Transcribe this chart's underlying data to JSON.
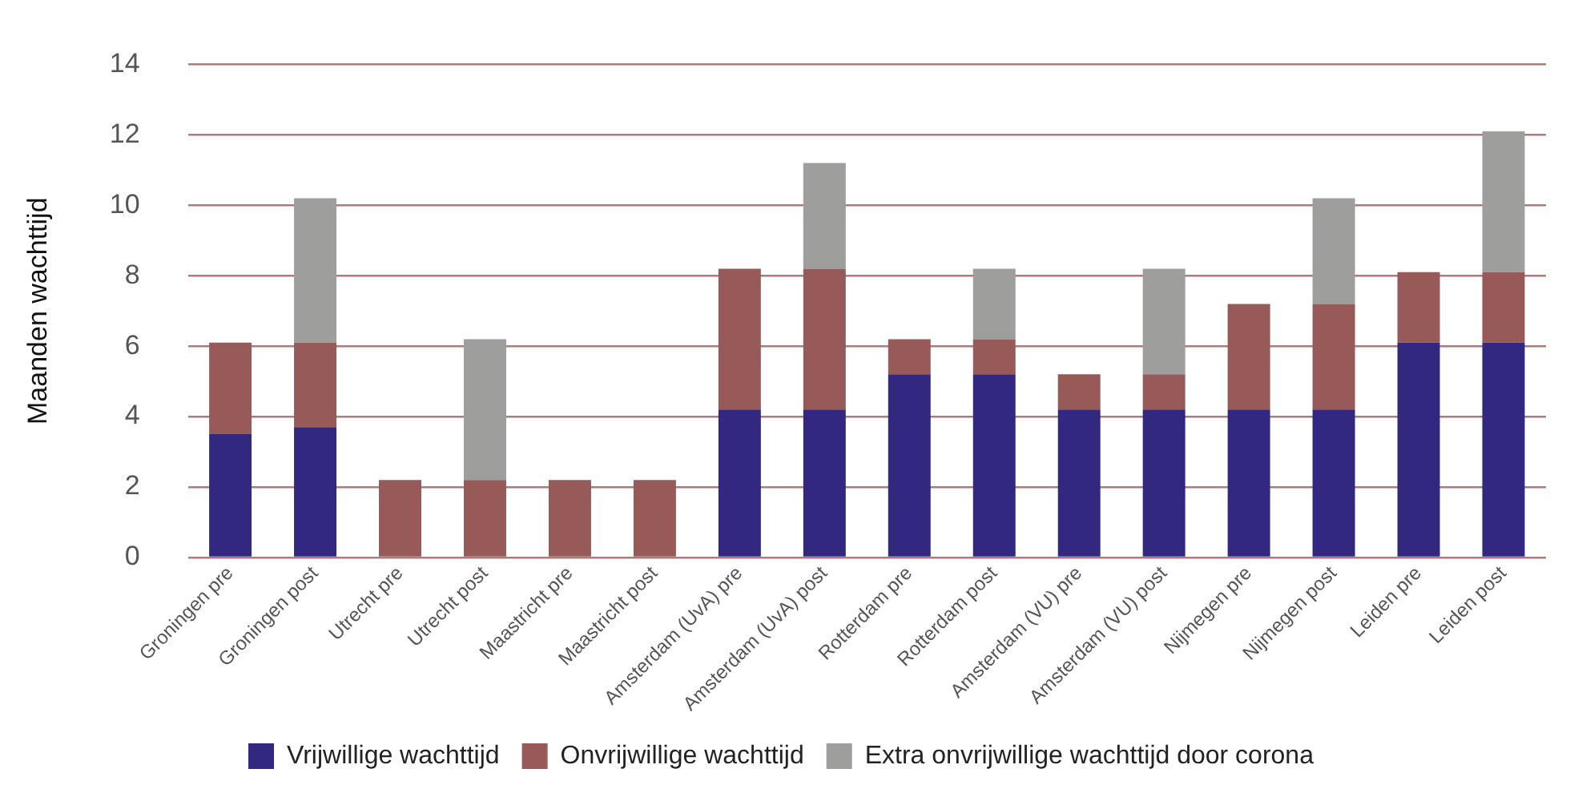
{
  "chart_data": {
    "type": "bar",
    "stacked": true,
    "ylabel": "Maanden wachttijd",
    "categories": [
      "Groningen pre",
      "Groningen post",
      "Utrecht pre",
      "Utrecht post",
      "Maastricht pre",
      "Maastricht post",
      "Amsterdam (UvA) pre",
      "Amsterdam (UvA) post",
      "Rotterdam pre",
      "Rotterdam post",
      "Amsterdam (VU) pre",
      "Amsterdam (VU) post",
      "Nijmegen pre",
      "Nijmegen post",
      "Leiden pre",
      "Leiden post"
    ],
    "series": [
      {
        "name": "Vrijwillige wachttijd",
        "color": "#32287f",
        "values": [
          3.5,
          3.7,
          null,
          null,
          null,
          null,
          4.2,
          4.2,
          5.2,
          5.2,
          4.2,
          4.2,
          4.2,
          4.2,
          6.1,
          6.1
        ]
      },
      {
        "name": "Onvrijwillige wachttijd",
        "color": "#985959",
        "values": [
          2.6,
          2.4,
          2.2,
          2.2,
          2.2,
          2.2,
          4.0,
          4.0,
          1.0,
          1.0,
          1.0,
          1.0,
          3.0,
          3.0,
          2.0,
          2.0
        ]
      },
      {
        "name": "Extra onvrijwillige wachttijd door corona",
        "color": "#9e9e9c",
        "values": [
          null,
          4.1,
          null,
          4.0,
          null,
          null,
          null,
          3.0,
          null,
          2.0,
          null,
          3.0,
          null,
          3.0,
          null,
          4.0
        ]
      }
    ],
    "ylim": [
      0,
      14
    ],
    "yticks": [
      0,
      2,
      4,
      6,
      8,
      10,
      12,
      14
    ],
    "grid": "y",
    "legend": "bottom"
  }
}
